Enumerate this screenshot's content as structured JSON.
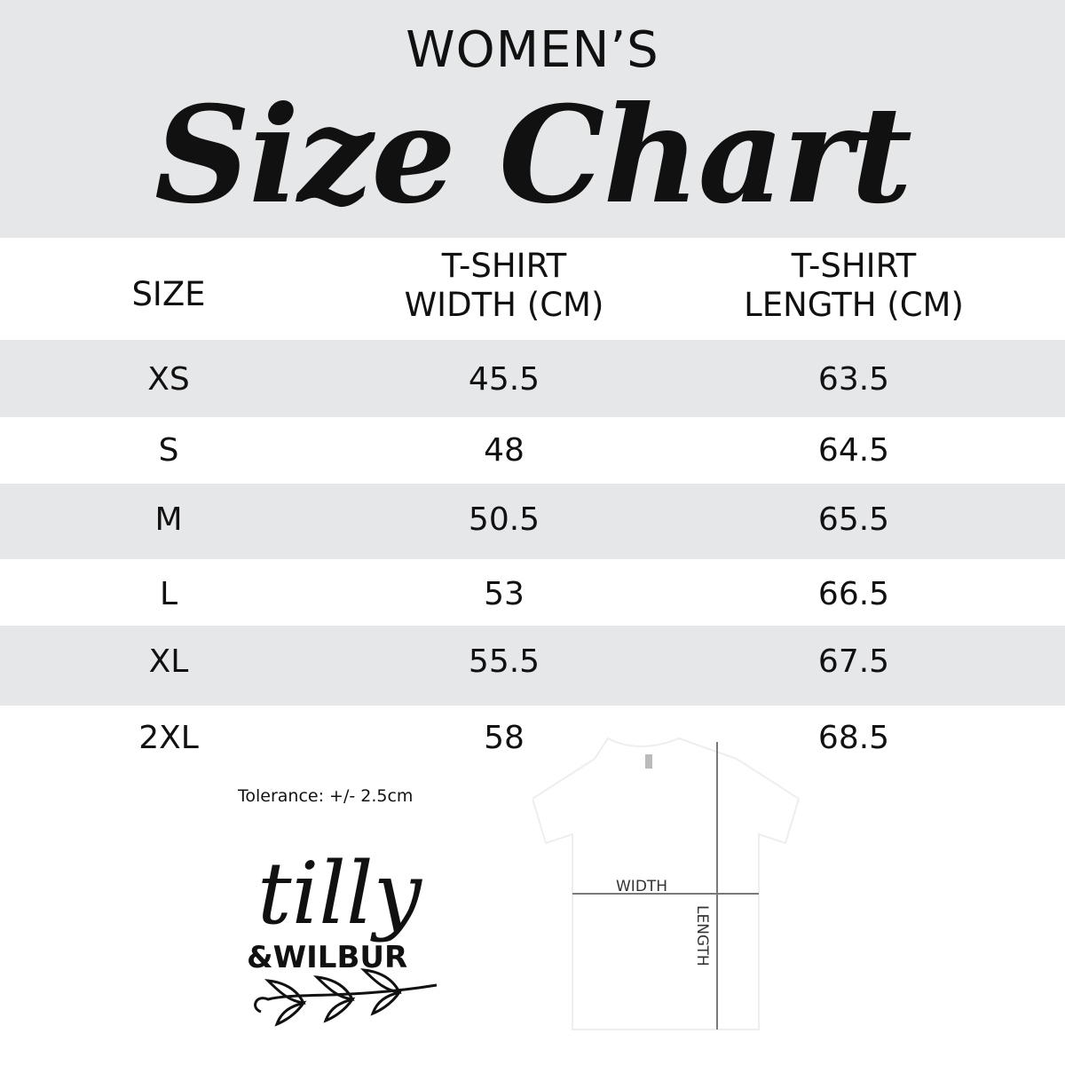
{
  "header": {
    "subtitle": "WOMEN’S",
    "title": "Size Chart"
  },
  "table": {
    "columns": [
      "SIZE",
      "T-SHIRT\nWIDTH (CM)",
      "T-SHIRT\nLENGTH (CM)"
    ],
    "column_lines": [
      [
        "SIZE"
      ],
      [
        "T-SHIRT",
        "WIDTH (CM)"
      ],
      [
        "T-SHIRT",
        "LENGTH (CM)"
      ]
    ],
    "rows": [
      [
        "XS",
        "45.5",
        "63.5"
      ],
      [
        "S",
        "48",
        "64.5"
      ],
      [
        "M",
        "50.5",
        "65.5"
      ],
      [
        "L",
        "53",
        "66.5"
      ],
      [
        "XL",
        "55.5",
        "67.5"
      ],
      [
        "2XL",
        "58",
        "68.5"
      ]
    ]
  },
  "tolerance": "Tolerance: +/- 2.5cm",
  "logo": {
    "line1": "tilly",
    "line2": "&WILBUR"
  },
  "diagram": {
    "width_label": "WIDTH",
    "length_label": "LENGTH"
  },
  "colors": {
    "band": "#e6e7e9",
    "text": "#111111",
    "guide": "#7a7a7a"
  }
}
